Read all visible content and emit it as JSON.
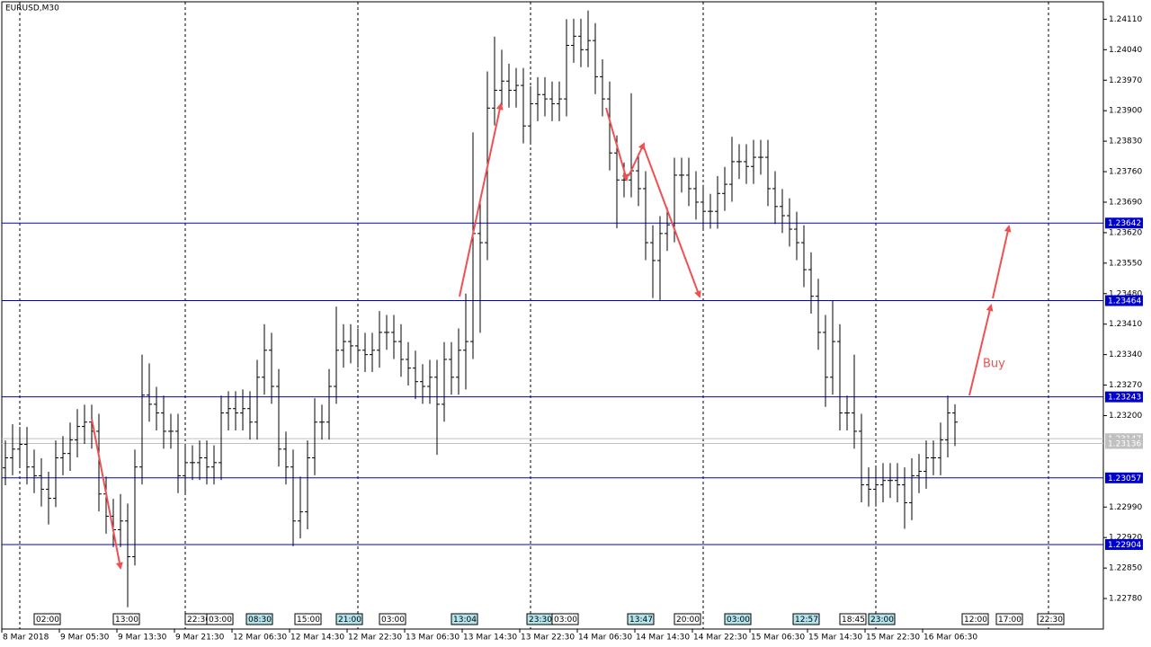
{
  "chart_data": {
    "type": "ohlc",
    "title": "EURUSD,M30",
    "color": "#000000",
    "open": [
      1.2308,
      1.23103,
      1.23123,
      1.23134,
      1.23082,
      1.23062,
      1.23031,
      1.2301,
      1.23103,
      1.23113,
      1.23144,
      1.23175,
      1.23185,
      1.23164,
      1.2302,
      1.22969,
      1.22938,
      1.22958,
      1.22876,
      1.23082,
      1.23247,
      1.23226,
      1.23206,
      1.23164,
      1.23164,
      1.23062,
      1.23092,
      1.23092,
      1.23103,
      1.23082,
      1.23092,
      1.23206,
      1.23216,
      1.23206,
      1.23216,
      1.23185,
      1.23288,
      1.2335,
      1.23267,
      1.23123,
      1.23082,
      1.22958,
      1.22979,
      1.23103,
      1.23185,
      1.23185,
      1.23267,
      1.2335,
      1.2337,
      1.2336,
      1.2335,
      1.2334,
      1.2335,
      1.23391,
      1.23391,
      1.2337,
      1.23329,
      1.23309,
      1.23278,
      1.23267,
      1.23288,
      1.23226,
      1.23329,
      1.23288,
      1.2335,
      1.2337,
      1.23618,
      1.23597,
      1.23906,
      1.23947,
      1.23968,
      1.23947,
      1.23958,
      1.23865,
      1.23916,
      1.23937,
      1.23927,
      1.23916,
      1.23927,
      1.2405,
      1.24071,
      1.2404,
      1.24061,
      1.23978,
      1.23927,
      1.23803,
      1.23741,
      1.23741,
      1.23762,
      1.23721,
      1.23597,
      1.23556,
      1.23618,
      1.23638,
      1.23752,
      1.23752,
      1.23721,
      1.2369,
      1.23669,
      1.23669,
      1.2371,
      1.23731,
      1.23783,
      1.23783,
      1.23772,
      1.23793,
      1.23793,
      1.23721,
      1.2368,
      1.23659,
      1.23628,
      1.23597,
      1.23535,
      1.23474,
      1.23391,
      1.23288,
      1.2337,
      1.23206,
      1.23206,
      1.23164,
      1.23041,
      1.23031,
      1.23041,
      1.23051,
      1.23051,
      1.23041,
      1.23,
      1.23062,
      1.23072,
      1.23103,
      1.23103,
      1.23144,
      1.23206
    ],
    "high": [
      1.23143,
      1.2318,
      1.23174,
      1.23174,
      1.23122,
      1.23102,
      1.23071,
      1.23143,
      1.23153,
      1.23184,
      1.23215,
      1.23225,
      1.23225,
      1.23204,
      1.2306,
      1.23009,
      1.2302,
      1.22998,
      1.23122,
      1.2334,
      1.2332,
      1.23266,
      1.23246,
      1.23204,
      1.23204,
      1.23132,
      1.23132,
      1.23143,
      1.23143,
      1.23132,
      1.23246,
      1.23256,
      1.23256,
      1.2326,
      1.23256,
      1.23328,
      1.2341,
      1.2339,
      1.23307,
      1.23163,
      1.23122,
      1.2306,
      1.23143,
      1.2324,
      1.23225,
      1.23307,
      1.2345,
      1.2341,
      1.2341,
      1.234,
      1.2339,
      1.2339,
      1.2344,
      1.23431,
      1.23431,
      1.2341,
      1.23369,
      1.23349,
      1.23318,
      1.23328,
      1.23328,
      1.23369,
      1.23369,
      1.234,
      1.2348,
      1.2385,
      1.237,
      1.2399,
      1.2407,
      1.2404,
      1.24008,
      1.23998,
      1.23998,
      1.23956,
      1.23977,
      1.23977,
      1.23967,
      1.23967,
      1.2411,
      1.24111,
      1.24111,
      1.2413,
      1.24101,
      1.24018,
      1.23967,
      1.23843,
      1.23781,
      1.2394,
      1.23802,
      1.23761,
      1.23637,
      1.23658,
      1.23678,
      1.23792,
      1.23792,
      1.23792,
      1.23761,
      1.2373,
      1.23709,
      1.2375,
      1.23771,
      1.2384,
      1.23823,
      1.23823,
      1.23833,
      1.23833,
      1.23833,
      1.23761,
      1.2372,
      1.23699,
      1.23668,
      1.23637,
      1.23575,
      1.23514,
      1.23431,
      1.23464,
      1.2341,
      1.23246,
      1.2334,
      1.23204,
      1.23081,
      1.23081,
      1.23091,
      1.23091,
      1.23091,
      1.23081,
      1.23102,
      1.23112,
      1.23143,
      1.23143,
      1.23184,
      1.23246,
      1.23226
    ],
    "low": [
      1.2304,
      1.23063,
      1.23083,
      1.23042,
      1.23022,
      1.22991,
      1.2295,
      1.2299,
      1.23063,
      1.23073,
      1.23104,
      1.23135,
      1.23124,
      1.2298,
      1.22929,
      1.22898,
      1.22898,
      1.2276,
      1.22856,
      1.23042,
      1.23186,
      1.23166,
      1.23124,
      1.23124,
      1.23022,
      1.23022,
      1.23052,
      1.23052,
      1.23042,
      1.23042,
      1.23052,
      1.23166,
      1.23166,
      1.23166,
      1.23145,
      1.23145,
      1.23248,
      1.23227,
      1.23083,
      1.23042,
      1.229,
      1.22918,
      1.22939,
      1.23063,
      1.23145,
      1.23145,
      1.23227,
      1.2331,
      1.2332,
      1.2331,
      1.233,
      1.233,
      1.2331,
      1.23351,
      1.2333,
      1.23289,
      1.23269,
      1.23238,
      1.23227,
      1.23227,
      1.2311,
      1.23186,
      1.23248,
      1.23248,
      1.2326,
      1.2333,
      1.2339,
      1.23557,
      1.23866,
      1.23907,
      1.23907,
      1.23907,
      1.23825,
      1.23825,
      1.23876,
      1.23887,
      1.23876,
      1.23876,
      1.23887,
      1.2401,
      1.24,
      1.24,
      1.23938,
      1.23887,
      1.23763,
      1.2363,
      1.23701,
      1.23701,
      1.23681,
      1.23557,
      1.2347,
      1.23464,
      1.23578,
      1.23598,
      1.23712,
      1.23681,
      1.2365,
      1.23629,
      1.23629,
      1.23629,
      1.2367,
      1.23691,
      1.23743,
      1.23732,
      1.23732,
      1.23753,
      1.23681,
      1.2364,
      1.23619,
      1.23588,
      1.23557,
      1.23495,
      1.23434,
      1.23351,
      1.2322,
      1.23248,
      1.23166,
      1.23166,
      1.23124,
      1.23001,
      1.22991,
      1.22991,
      1.23001,
      1.23011,
      1.23001,
      1.2294,
      1.2296,
      1.23022,
      1.23032,
      1.23063,
      1.23063,
      1.23104,
      1.2313
    ],
    "close": [
      1.23103,
      1.23123,
      1.23134,
      1.23082,
      1.23062,
      1.23031,
      1.2301,
      1.23103,
      1.23113,
      1.23144,
      1.23175,
      1.23185,
      1.23164,
      1.2302,
      1.22969,
      1.22938,
      1.22958,
      1.22876,
      1.23082,
      1.23247,
      1.23226,
      1.23206,
      1.23164,
      1.23164,
      1.23062,
      1.23092,
      1.23092,
      1.23103,
      1.23082,
      1.23092,
      1.23206,
      1.23216,
      1.23206,
      1.23216,
      1.23185,
      1.23288,
      1.2335,
      1.23267,
      1.23123,
      1.23082,
      1.22958,
      1.22979,
      1.23103,
      1.23185,
      1.23185,
      1.23267,
      1.2335,
      1.2337,
      1.2336,
      1.2335,
      1.2334,
      1.2335,
      1.23391,
      1.23391,
      1.2337,
      1.23329,
      1.23309,
      1.23278,
      1.23267,
      1.23288,
      1.23226,
      1.23329,
      1.23288,
      1.2335,
      1.2337,
      1.23618,
      1.23597,
      1.23906,
      1.23947,
      1.23968,
      1.23947,
      1.23958,
      1.23865,
      1.23916,
      1.23937,
      1.23927,
      1.23916,
      1.23927,
      1.2405,
      1.24071,
      1.2404,
      1.24061,
      1.23978,
      1.23927,
      1.23803,
      1.23741,
      1.23741,
      1.23762,
      1.23721,
      1.23597,
      1.23556,
      1.23618,
      1.23638,
      1.23752,
      1.23752,
      1.23721,
      1.2369,
      1.23669,
      1.23669,
      1.2371,
      1.23731,
      1.23783,
      1.23783,
      1.23772,
      1.23793,
      1.23793,
      1.23721,
      1.2368,
      1.23659,
      1.23628,
      1.23597,
      1.23535,
      1.23474,
      1.23391,
      1.23288,
      1.2337,
      1.23206,
      1.23206,
      1.23164,
      1.23041,
      1.23031,
      1.23041,
      1.23051,
      1.23051,
      1.23041,
      1.23,
      1.23062,
      1.23072,
      1.23103,
      1.23103,
      1.23144,
      1.23206,
      1.23185
    ],
    "ylim": [
      1.2271,
      1.2415
    ],
    "yticks": [
      {
        "value": 1.2411,
        "label": "1.24110"
      },
      {
        "value": 1.2404,
        "label": "1.24040"
      },
      {
        "value": 1.2397,
        "label": "1.23970"
      },
      {
        "value": 1.239,
        "label": "1.23900"
      },
      {
        "value": 1.2383,
        "label": "1.23830"
      },
      {
        "value": 1.2376,
        "label": "1.23760"
      },
      {
        "value": 1.2369,
        "label": "1.23690"
      },
      {
        "value": 1.2362,
        "label": "1.23620"
      },
      {
        "value": 1.2355,
        "label": "1.23550"
      },
      {
        "value": 1.2348,
        "label": "1.23480"
      },
      {
        "value": 1.2341,
        "label": "1.23410"
      },
      {
        "value": 1.2334,
        "label": "1.23340"
      },
      {
        "value": 1.2327,
        "label": "1.23270"
      },
      {
        "value": 1.232,
        "label": "1.23200"
      },
      {
        "value": 1.2299,
        "label": "1.22990"
      },
      {
        "value": 1.2292,
        "label": "1.22920"
      },
      {
        "value": 1.2285,
        "label": "1.22850"
      },
      {
        "value": 1.2278,
        "label": "1.22780"
      }
    ],
    "xticks": [
      {
        "value": 0,
        "label": "8 Mar 2018"
      },
      {
        "value": 8,
        "label": "9 Mar 05:30"
      },
      {
        "value": 16,
        "label": "9 Mar 13:30"
      },
      {
        "value": 24,
        "label": "9 Mar 21:30"
      },
      {
        "value": 32,
        "label": "12 Mar 06:30"
      },
      {
        "value": 40,
        "label": "12 Mar 14:30"
      },
      {
        "value": 48,
        "label": "12 Mar 22:30"
      },
      {
        "value": 56,
        "label": "13 Mar 06:30"
      },
      {
        "value": 64,
        "label": "13 Mar 14:30"
      },
      {
        "value": 72,
        "label": "13 Mar 22:30"
      },
      {
        "value": 80,
        "label": "14 Mar 06:30"
      },
      {
        "value": 88,
        "label": "14 Mar 14:30"
      },
      {
        "value": 96,
        "label": "14 Mar 22:30"
      },
      {
        "value": 104,
        "label": "15 Mar 06:30"
      },
      {
        "value": 112,
        "label": "15 Mar 14:30"
      },
      {
        "value": 120,
        "label": "15 Mar 22:30"
      },
      {
        "value": 128,
        "label": "16 Mar 06:30"
      }
    ],
    "levels": [
      {
        "value": 1.23642,
        "label": "1.23642",
        "color": "#0000cd"
      },
      {
        "value": 1.23464,
        "label": "1.23464",
        "color": "#0000cd"
      },
      {
        "value": 1.23243,
        "label": "1.23243",
        "color": "#0000cd"
      },
      {
        "value": 1.23057,
        "label": "1.23057",
        "color": "#0000cd"
      },
      {
        "value": 1.22904,
        "label": "1.22904",
        "color": "#0000cd"
      },
      {
        "value": 1.23147,
        "label": "1.23147",
        "color": "#c0c0c0"
      },
      {
        "value": 1.23136,
        "label": "1.23136",
        "color": "#c0c0c0"
      }
    ],
    "deal_labels": [
      "02:00",
      "13:00",
      "22:30",
      "03:00",
      "08:30",
      "15:00",
      "21:00",
      "03:00",
      "13:04",
      "23:30",
      "03:00",
      "13:47",
      "20:00",
      "03:00",
      "12:57",
      "18:45",
      "23:00",
      "12:00",
      "17:00",
      "22:30"
    ],
    "annotation": "Buy"
  }
}
